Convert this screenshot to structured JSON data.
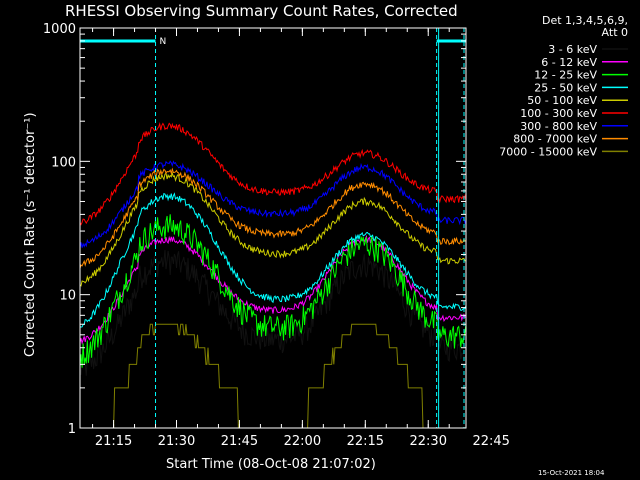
{
  "chart_data": {
    "type": "line",
    "title": "RHESSI Observing Summary Count Rates, Corrected",
    "xlabel": "Start Time (08-Oct-08 21:07:02)",
    "ylabel": "Corrected Count Rate (s⁻¹ detector⁻¹)",
    "yscale": "log",
    "ylim": [
      1,
      1000
    ],
    "xlim_minutes": [
      7,
      99
    ],
    "x_tick_labels": [
      "21:15",
      "21:30",
      "21:45",
      "22:00",
      "22:15",
      "22:30",
      "22:45"
    ],
    "x_tick_minutes": [
      15,
      30,
      45,
      60,
      75,
      90,
      105
    ],
    "y_tick_labels": [
      "1",
      "10",
      "100",
      "1000"
    ],
    "y_tick_values": [
      1,
      10,
      100,
      1000
    ],
    "legend": {
      "position": "top-right",
      "header_line1": "Det 1,3,4,5,6,9,",
      "header_line2": "Att 0"
    },
    "annotations": {
      "flag_label": "N",
      "footer": "15-Oct-2021 18:04"
    },
    "sun_bars": [
      [
        7,
        25
      ],
      [
        92,
        99
      ]
    ],
    "night_markers_minutes": [
      25,
      92
    ],
    "series": [
      {
        "name": "3 - 6 keV",
        "color": "#000000",
        "base": 4.5,
        "amp1": 18,
        "amp2": 17
      },
      {
        "name": "6 - 12 keV",
        "color": "#ff00ff",
        "base": 7.5,
        "amp1": 26,
        "amp2": 26
      },
      {
        "name": "12 - 25 keV",
        "color": "#00ff00",
        "base": 5.5,
        "amp1": 33,
        "amp2": 24
      },
      {
        "name": "25 - 50 keV",
        "color": "#00ffff",
        "base": 9,
        "amp1": 55,
        "amp2": 28
      },
      {
        "name": "50 - 100 keV",
        "color": "#cccc00",
        "base": 20,
        "amp1": 78,
        "amp2": 50
      },
      {
        "name": "100 - 300 keV",
        "color": "#ff0000",
        "base": 58,
        "amp1": 185,
        "amp2": 115
      },
      {
        "name": "300 - 800 keV",
        "color": "#0000ff",
        "base": 40,
        "amp1": 95,
        "amp2": 90
      },
      {
        "name": "800 - 7000 keV",
        "color": "#ff8c00",
        "base": 28,
        "amp1": 85,
        "amp2": 68
      },
      {
        "name": "7000 - 15000 keV",
        "color": "#808000",
        "base": 1,
        "amp1": 6,
        "amp2": 6
      }
    ]
  }
}
